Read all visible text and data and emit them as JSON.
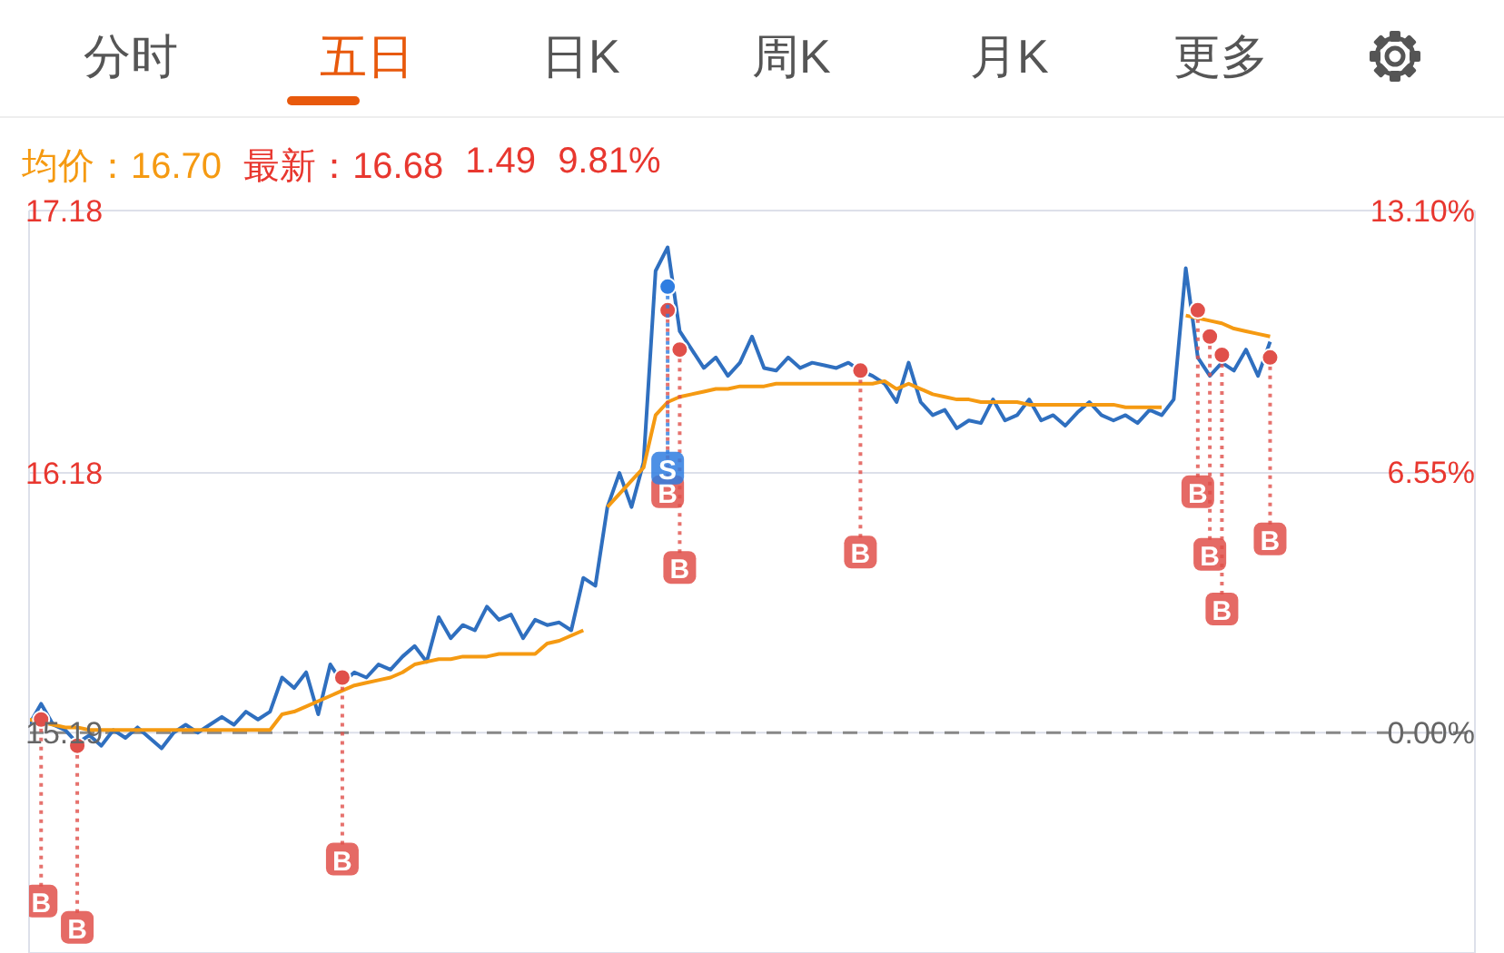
{
  "chart_data": {
    "type": "line",
    "annotations": [
      "分时",
      "五日",
      "日K",
      "周K",
      "月K",
      "更多",
      "均价：16.70",
      "最新：16.68",
      "1.49",
      "9.81%"
    ],
    "categories": [
      null,
      null,
      null,
      null,
      null,
      null,
      null,
      null,
      null,
      null,
      null,
      null,
      null,
      null,
      null,
      null,
      null,
      null,
      null,
      null,
      null,
      null,
      null,
      null,
      null,
      null,
      null,
      null,
      null,
      null,
      null,
      null,
      null,
      null,
      null,
      null,
      null,
      null,
      null,
      null,
      null,
      null,
      null,
      null,
      null,
      null,
      null,
      null,
      null,
      null,
      null,
      null,
      null,
      null,
      null,
      null,
      null,
      null,
      null,
      null,
      null,
      null,
      null,
      null,
      null,
      null,
      null,
      null,
      null,
      null,
      null,
      null,
      null,
      null,
      null,
      null,
      null,
      null,
      null,
      null,
      null,
      null,
      null,
      null,
      null,
      null,
      null,
      null,
      null,
      null,
      null,
      null,
      null,
      null,
      null,
      null,
      null,
      null,
      null,
      null,
      null,
      null,
      null,
      null,
      null,
      null,
      null,
      null,
      null,
      null,
      null,
      null,
      null,
      null,
      null,
      null,
      null,
      null,
      null,
      null,
      null
    ],
    "ylim": [
      14.35,
      17.18
    ],
    "yticks": [
      15.19,
      16.18,
      17.18
    ],
    "y2lim": [
      -5.53,
      13.1
    ],
    "y2ticks": [
      {
        "value": 0,
        "label": "0.00%"
      },
      {
        "value": 6.55,
        "label": "6.55%"
      },
      {
        "value": 13.1,
        "label": "13.10%"
      }
    ],
    "grid": "y",
    "ref_lines": [
      {
        "axis": "y",
        "value": 15.19,
        "color": "#888888",
        "line_style": "dashed"
      }
    ],
    "series": [
      {
        "color": "#2f6fbf",
        "values": [
          15.22,
          15.3,
          15.22,
          15.2,
          15.15,
          15.18,
          15.14,
          15.2,
          15.17,
          15.21,
          15.17,
          15.13,
          15.19,
          15.22,
          15.19,
          15.22,
          15.25,
          15.22,
          15.27,
          15.24,
          15.27,
          15.4,
          15.36,
          15.42,
          15.26,
          15.45,
          15.38,
          15.42,
          15.4,
          15.45,
          15.43,
          15.48,
          15.52,
          15.46,
          15.63,
          15.55,
          15.6,
          15.58,
          15.67,
          15.62,
          15.64,
          15.55,
          15.62,
          15.6,
          15.61,
          15.58,
          15.78,
          15.75,
          16.05,
          16.18,
          16.05,
          16.22,
          16.95,
          17.04,
          16.72,
          16.65,
          16.58,
          16.62,
          16.55,
          16.6,
          16.7,
          16.58,
          16.57,
          16.62,
          16.58,
          16.6,
          16.59,
          16.58,
          16.6,
          16.57,
          16.55,
          16.52,
          16.45,
          16.6,
          16.45,
          16.4,
          16.42,
          16.35,
          16.38,
          16.37,
          16.46,
          16.38,
          16.4,
          16.46,
          16.38,
          16.4,
          16.36,
          16.41,
          16.45,
          16.4,
          16.38,
          16.4,
          16.37,
          16.42,
          16.4,
          16.46,
          16.96,
          16.62,
          16.55,
          16.6,
          16.57,
          16.65,
          16.55,
          16.68,
          null,
          null,
          null,
          null,
          null,
          null,
          null,
          null,
          null,
          null,
          null,
          null,
          null,
          null,
          null,
          null,
          null
        ]
      },
      {
        "color": "#f59a12",
        "values": [
          15.24,
          15.23,
          15.22,
          15.21,
          15.21,
          15.2,
          15.2,
          15.2,
          15.2,
          15.2,
          15.2,
          15.2,
          15.2,
          15.2,
          15.2,
          15.2,
          15.2,
          15.2,
          15.2,
          15.2,
          15.2,
          15.26,
          15.27,
          15.29,
          15.31,
          15.33,
          15.35,
          15.37,
          15.38,
          15.39,
          15.4,
          15.42,
          15.45,
          15.46,
          15.47,
          15.47,
          15.48,
          15.48,
          15.48,
          15.49,
          15.49,
          15.49,
          15.49,
          15.53,
          15.54,
          15.56,
          15.58,
          null,
          16.05,
          16.1,
          16.15,
          16.2,
          16.4,
          16.45,
          16.47,
          16.48,
          16.49,
          16.5,
          16.5,
          16.51,
          16.51,
          16.51,
          16.52,
          16.52,
          16.52,
          16.52,
          16.52,
          16.52,
          16.52,
          16.52,
          16.52,
          16.53,
          16.5,
          16.52,
          16.5,
          16.48,
          16.47,
          16.46,
          16.46,
          16.45,
          16.45,
          16.45,
          16.45,
          16.44,
          16.44,
          16.44,
          16.44,
          16.44,
          16.44,
          16.44,
          16.44,
          16.43,
          16.43,
          16.43,
          16.43,
          null,
          16.78,
          16.77,
          16.76,
          16.75,
          16.73,
          16.72,
          16.71,
          16.7,
          null,
          null,
          null,
          null,
          null,
          null,
          null,
          null,
          null,
          null,
          null,
          null,
          null,
          null,
          null,
          null,
          null
        ]
      },
      {
        "type": "scatter",
        "color": "#e0504a",
        "values": [
          null,
          15.24,
          null,
          null,
          15.14,
          null,
          null,
          null,
          null,
          null,
          null,
          null,
          null,
          null,
          null,
          null,
          null,
          null,
          null,
          null,
          null,
          null,
          null,
          null,
          null,
          null,
          15.4,
          null,
          null,
          null,
          null,
          null,
          null,
          null,
          null,
          null,
          null,
          null,
          null,
          null,
          null,
          null,
          null,
          null,
          null,
          null,
          null,
          null,
          null,
          null,
          null,
          null,
          null,
          16.8,
          16.65,
          null,
          null,
          null,
          null,
          null,
          null,
          null,
          null,
          null,
          null,
          null,
          null,
          null,
          null,
          16.57,
          null,
          null,
          null,
          null,
          null,
          null,
          null,
          null,
          null,
          null,
          null,
          null,
          null,
          null,
          null,
          null,
          null,
          null,
          null,
          null,
          null,
          null,
          null,
          null,
          null,
          null,
          null,
          16.8,
          16.7,
          16.63,
          null,
          null,
          null,
          16.62,
          null,
          null,
          null,
          null,
          null,
          null,
          null,
          null,
          null,
          null,
          null,
          null,
          null,
          null,
          null,
          null,
          null
        ],
        "value_labels": [
          null,
          "B",
          null,
          null,
          "B",
          null,
          null,
          null,
          null,
          null,
          null,
          null,
          null,
          null,
          null,
          null,
          null,
          null,
          null,
          null,
          null,
          null,
          null,
          null,
          null,
          null,
          "B",
          null,
          null,
          null,
          null,
          null,
          null,
          null,
          null,
          null,
          null,
          null,
          null,
          null,
          null,
          null,
          null,
          null,
          null,
          null,
          null,
          null,
          null,
          null,
          null,
          null,
          null,
          "B",
          "B",
          null,
          null,
          null,
          null,
          null,
          null,
          null,
          null,
          null,
          null,
          null,
          null,
          null,
          null,
          "B",
          null,
          null,
          null,
          null,
          null,
          null,
          null,
          null,
          null,
          null,
          null,
          null,
          null,
          null,
          null,
          null,
          null,
          null,
          null,
          null,
          null,
          null,
          null,
          null,
          null,
          null,
          null,
          "B",
          "B",
          "B",
          null,
          null,
          null,
          "B",
          null,
          null,
          null,
          null,
          null,
          null,
          null,
          null,
          null,
          null,
          null,
          null,
          null,
          null,
          null,
          null,
          null
        ]
      },
      {
        "type": "scatter",
        "color": "#2f7de1",
        "values": [
          null,
          null,
          null,
          null,
          null,
          null,
          null,
          null,
          null,
          null,
          null,
          null,
          null,
          null,
          null,
          null,
          null,
          null,
          null,
          null,
          null,
          null,
          null,
          null,
          null,
          null,
          null,
          null,
          null,
          null,
          null,
          null,
          null,
          null,
          null,
          null,
          null,
          null,
          null,
          null,
          null,
          null,
          null,
          null,
          null,
          null,
          null,
          null,
          null,
          null,
          null,
          null,
          null,
          16.89,
          null,
          null,
          null,
          null,
          null,
          null,
          null,
          null,
          null,
          null,
          null,
          null,
          null,
          null,
          null,
          null,
          null,
          null,
          null,
          null,
          null,
          null,
          null,
          null,
          null,
          null,
          null,
          null,
          null,
          null,
          null,
          null,
          null,
          null,
          null,
          null,
          null,
          null,
          null,
          null,
          null,
          null,
          null,
          null,
          null,
          null,
          null,
          null,
          null,
          null,
          null,
          null,
          null,
          null,
          null,
          null,
          null,
          null,
          null,
          null,
          null,
          null,
          null,
          null,
          null,
          null,
          null
        ],
        "value_labels": [
          null,
          null,
          null,
          null,
          null,
          null,
          null,
          null,
          null,
          null,
          null,
          null,
          null,
          null,
          null,
          null,
          null,
          null,
          null,
          null,
          null,
          null,
          null,
          null,
          null,
          null,
          null,
          null,
          null,
          null,
          null,
          null,
          null,
          null,
          null,
          null,
          null,
          null,
          null,
          null,
          null,
          null,
          null,
          null,
          null,
          null,
          null,
          null,
          null,
          null,
          null,
          null,
          null,
          "S",
          null,
          null,
          null,
          null,
          null,
          null,
          null,
          null,
          null,
          null,
          null,
          null,
          null,
          null,
          null,
          null,
          null,
          null,
          null,
          null,
          null,
          null,
          null,
          null,
          null,
          null,
          null,
          null,
          null,
          null,
          null,
          null,
          null,
          null,
          null,
          null,
          null,
          null,
          null,
          null,
          null,
          null,
          null,
          null,
          null,
          null,
          null,
          null,
          null,
          null,
          null,
          null,
          null,
          null,
          null,
          null,
          null,
          null,
          null,
          null,
          null,
          null,
          null,
          null,
          null,
          null,
          null
        ]
      }
    ]
  }
}
